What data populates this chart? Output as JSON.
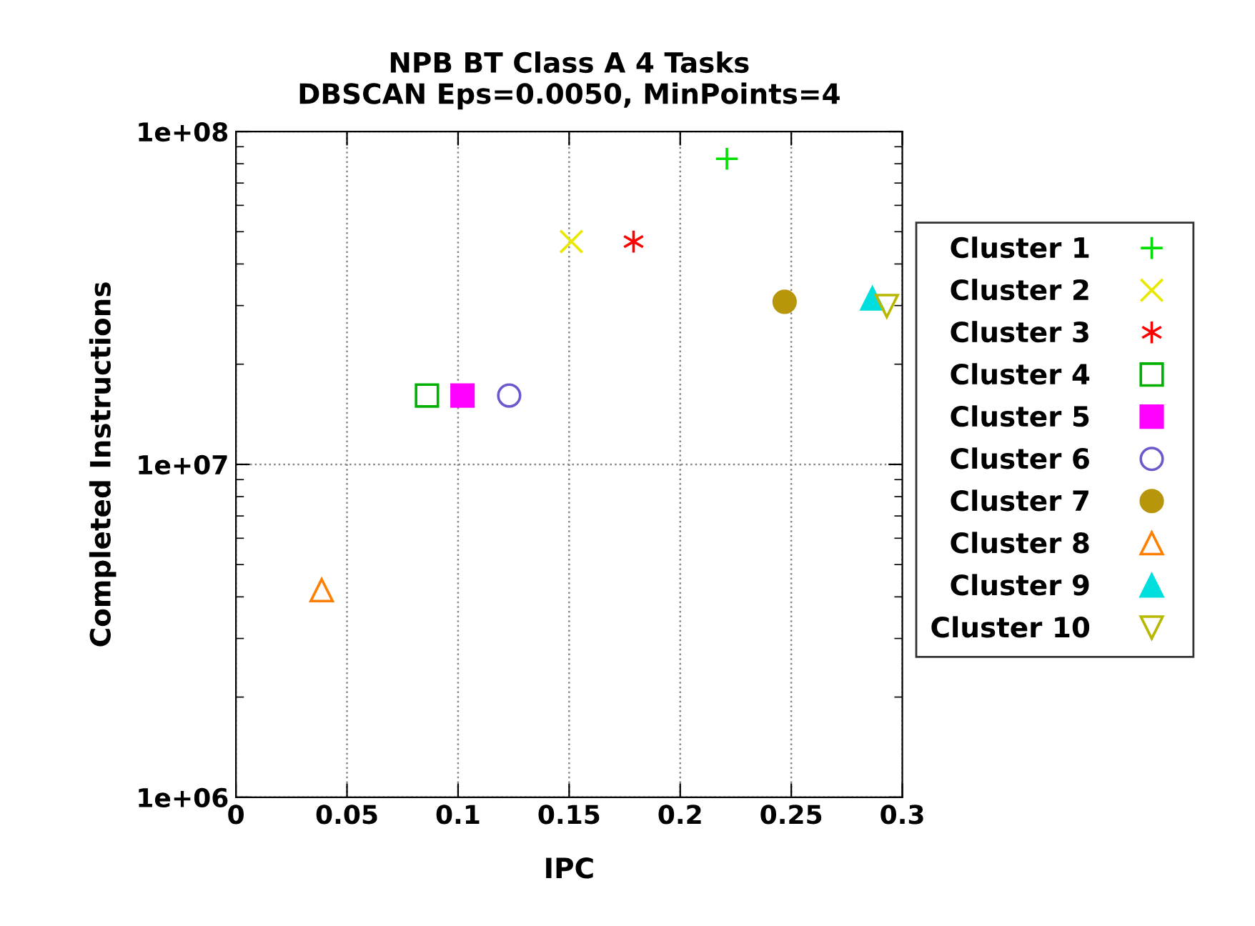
{
  "chart_data": {
    "type": "scatter",
    "title": "NPB BT Class A 4 Tasks\nDBSCAN Eps=0.0050, MinPoints=4",
    "xlabel": "IPC",
    "ylabel": "Completed Instructions",
    "log": "y",
    "grid": true,
    "legend": "right",
    "xlim": [
      0,
      0.3
    ],
    "xticks": [
      0,
      0.05,
      0.1,
      0.15,
      0.2,
      0.25,
      0.3
    ],
    "ylim": [
      1000000,
      100000000
    ],
    "yticks": [
      {
        "value": 1000000,
        "label": "1e+06"
      },
      {
        "value": 10000000,
        "label": "1e+07"
      },
      {
        "value": 100000000,
        "label": "1e+08"
      }
    ],
    "series": [
      {
        "name": "Cluster 1",
        "color": "#00e000",
        "marker": "plus",
        "x": [
          0.221
        ],
        "values": [
          82800000
        ]
      },
      {
        "name": "Cluster 2",
        "color": "#e8e800",
        "marker": "x",
        "x": [
          0.151
        ],
        "values": [
          46700000
        ]
      },
      {
        "name": "Cluster 3",
        "color": "#ff0000",
        "marker": "cross",
        "x": [
          0.179
        ],
        "values": [
          46700000
        ]
      },
      {
        "name": "Cluster 4",
        "color": "#00b000",
        "marker": "square",
        "x": [
          0.086
        ],
        "values": [
          16100000
        ]
      },
      {
        "name": "Cluster 5",
        "color": "#ff00ff",
        "marker": "square_filled",
        "x": [
          0.102
        ],
        "values": [
          16100000
        ]
      },
      {
        "name": "Cluster 6",
        "color": "#6a5acd",
        "marker": "circle",
        "x": [
          0.123
        ],
        "values": [
          16100000
        ]
      },
      {
        "name": "Cluster 7",
        "color": "#b8960b",
        "marker": "circle_filled",
        "x": [
          0.247
        ],
        "values": [
          30800000
        ]
      },
      {
        "name": "Cluster 8",
        "color": "#ff7f00",
        "marker": "triangle",
        "x": [
          0.0386
        ],
        "values": [
          4190000
        ]
      },
      {
        "name": "Cluster 9",
        "color": "#00dede",
        "marker": "triangle_filled",
        "x": [
          0.2865
        ],
        "values": [
          31500000
        ]
      },
      {
        "name": "Cluster 10",
        "color": "#b8b800",
        "marker": "triangle_down",
        "x": [
          0.293
        ],
        "values": [
          29900000
        ]
      }
    ]
  }
}
